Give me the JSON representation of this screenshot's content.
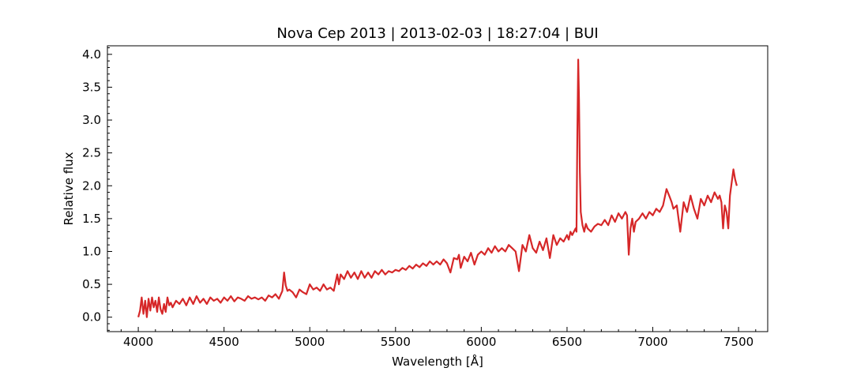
{
  "chart_data": {
    "type": "line",
    "title": "Nova Cep 2013 | 2013-02-03 | 18:27:04 | BUI",
    "xlabel": "Wavelength [Å]",
    "ylabel": "Relative flux",
    "xlim": [
      3820,
      7670
    ],
    "ylim": [
      -0.22,
      4.13
    ],
    "xticks": [
      4000,
      4500,
      5000,
      5500,
      6000,
      6500,
      7000,
      7500
    ],
    "yticks": [
      0.0,
      0.5,
      1.0,
      1.5,
      2.0,
      2.5,
      3.0,
      3.5,
      4.0
    ],
    "xtick_labels": [
      "4000",
      "4500",
      "5000",
      "5500",
      "6000",
      "6500",
      "7000",
      "7500"
    ],
    "ytick_labels": [
      "0.0",
      "0.5",
      "1.0",
      "1.5",
      "2.0",
      "2.5",
      "3.0",
      "3.5",
      "4.0"
    ],
    "grid": false,
    "color": "#d62728",
    "series": [
      {
        "x": [
          4000,
          4010,
          4020,
          4030,
          4040,
          4050,
          4060,
          4070,
          4080,
          4090,
          4100,
          4110,
          4120,
          4130,
          4140,
          4150,
          4160,
          4170,
          4180,
          4190,
          4200,
          4220,
          4240,
          4260,
          4280,
          4300,
          4320,
          4340,
          4360,
          4380,
          4400,
          4420,
          4440,
          4460,
          4480,
          4500,
          4520,
          4540,
          4560,
          4580,
          4600,
          4620,
          4640,
          4660,
          4680,
          4700,
          4720,
          4740,
          4760,
          4780,
          4800,
          4820,
          4840,
          4850,
          4860,
          4870,
          4880,
          4900,
          4920,
          4940,
          4960,
          4980,
          5000,
          5020,
          5040,
          5060,
          5080,
          5100,
          5120,
          5140,
          5160,
          5170,
          5180,
          5200,
          5220,
          5240,
          5260,
          5280,
          5300,
          5320,
          5340,
          5360,
          5380,
          5400,
          5420,
          5440,
          5460,
          5480,
          5500,
          5520,
          5540,
          5560,
          5580,
          5600,
          5620,
          5640,
          5660,
          5680,
          5700,
          5720,
          5740,
          5760,
          5780,
          5800,
          5820,
          5840,
          5860,
          5870,
          5880,
          5900,
          5920,
          5940,
          5960,
          5980,
          6000,
          6020,
          6040,
          6060,
          6080,
          6100,
          6120,
          6140,
          6160,
          6180,
          6200,
          6220,
          6240,
          6260,
          6280,
          6300,
          6320,
          6340,
          6360,
          6380,
          6400,
          6420,
          6440,
          6460,
          6480,
          6500,
          6510,
          6520,
          6530,
          6540,
          6550,
          6555,
          6560,
          6565,
          6570,
          6575,
          6580,
          6590,
          6600,
          6610,
          6620,
          6640,
          6660,
          6680,
          6700,
          6720,
          6740,
          6760,
          6780,
          6800,
          6820,
          6840,
          6850,
          6860,
          6870,
          6880,
          6890,
          6900,
          6920,
          6940,
          6960,
          6980,
          7000,
          7020,
          7040,
          7060,
          7080,
          7100,
          7110,
          7120,
          7140,
          7160,
          7180,
          7200,
          7220,
          7240,
          7260,
          7280,
          7300,
          7320,
          7340,
          7360,
          7380,
          7390,
          7400,
          7410,
          7420,
          7430,
          7440,
          7450,
          7460,
          7470,
          7480,
          7490
        ],
        "y": [
          0.0,
          0.1,
          0.3,
          0.05,
          0.25,
          0.0,
          0.28,
          0.1,
          0.3,
          0.15,
          0.25,
          0.08,
          0.3,
          0.12,
          0.05,
          0.2,
          0.08,
          0.3,
          0.18,
          0.22,
          0.15,
          0.25,
          0.2,
          0.28,
          0.18,
          0.3,
          0.2,
          0.32,
          0.22,
          0.28,
          0.2,
          0.3,
          0.25,
          0.28,
          0.22,
          0.3,
          0.25,
          0.32,
          0.24,
          0.3,
          0.28,
          0.25,
          0.32,
          0.28,
          0.3,
          0.27,
          0.3,
          0.25,
          0.33,
          0.3,
          0.35,
          0.28,
          0.4,
          0.68,
          0.48,
          0.4,
          0.42,
          0.38,
          0.3,
          0.42,
          0.38,
          0.35,
          0.5,
          0.42,
          0.45,
          0.4,
          0.5,
          0.42,
          0.45,
          0.4,
          0.65,
          0.5,
          0.65,
          0.58,
          0.7,
          0.6,
          0.68,
          0.58,
          0.7,
          0.6,
          0.68,
          0.6,
          0.7,
          0.65,
          0.72,
          0.65,
          0.7,
          0.68,
          0.72,
          0.7,
          0.75,
          0.72,
          0.78,
          0.74,
          0.8,
          0.76,
          0.82,
          0.78,
          0.85,
          0.8,
          0.85,
          0.8,
          0.88,
          0.82,
          0.68,
          0.9,
          0.88,
          0.95,
          0.75,
          0.92,
          0.85,
          0.98,
          0.8,
          0.95,
          1.0,
          0.95,
          1.05,
          0.98,
          1.08,
          1.0,
          1.05,
          1.0,
          1.1,
          1.05,
          1.0,
          0.7,
          1.1,
          1.0,
          1.25,
          1.05,
          0.98,
          1.15,
          1.02,
          1.2,
          0.9,
          1.25,
          1.1,
          1.2,
          1.15,
          1.25,
          1.18,
          1.3,
          1.25,
          1.3,
          1.35,
          1.3,
          2.8,
          3.92,
          3.3,
          2.2,
          1.6,
          1.4,
          1.3,
          1.42,
          1.35,
          1.3,
          1.38,
          1.42,
          1.4,
          1.48,
          1.4,
          1.55,
          1.45,
          1.58,
          1.5,
          1.6,
          1.55,
          0.95,
          1.35,
          1.5,
          1.3,
          1.45,
          1.5,
          1.58,
          1.5,
          1.6,
          1.55,
          1.65,
          1.6,
          1.7,
          1.95,
          1.82,
          1.75,
          1.65,
          1.7,
          1.3,
          1.75,
          1.6,
          1.85,
          1.65,
          1.5,
          1.8,
          1.7,
          1.85,
          1.75,
          1.9,
          1.8,
          1.85,
          1.75,
          1.35,
          1.7,
          1.6,
          1.35,
          1.85,
          2.05,
          2.25,
          2.1,
          2.0
        ]
      }
    ]
  }
}
